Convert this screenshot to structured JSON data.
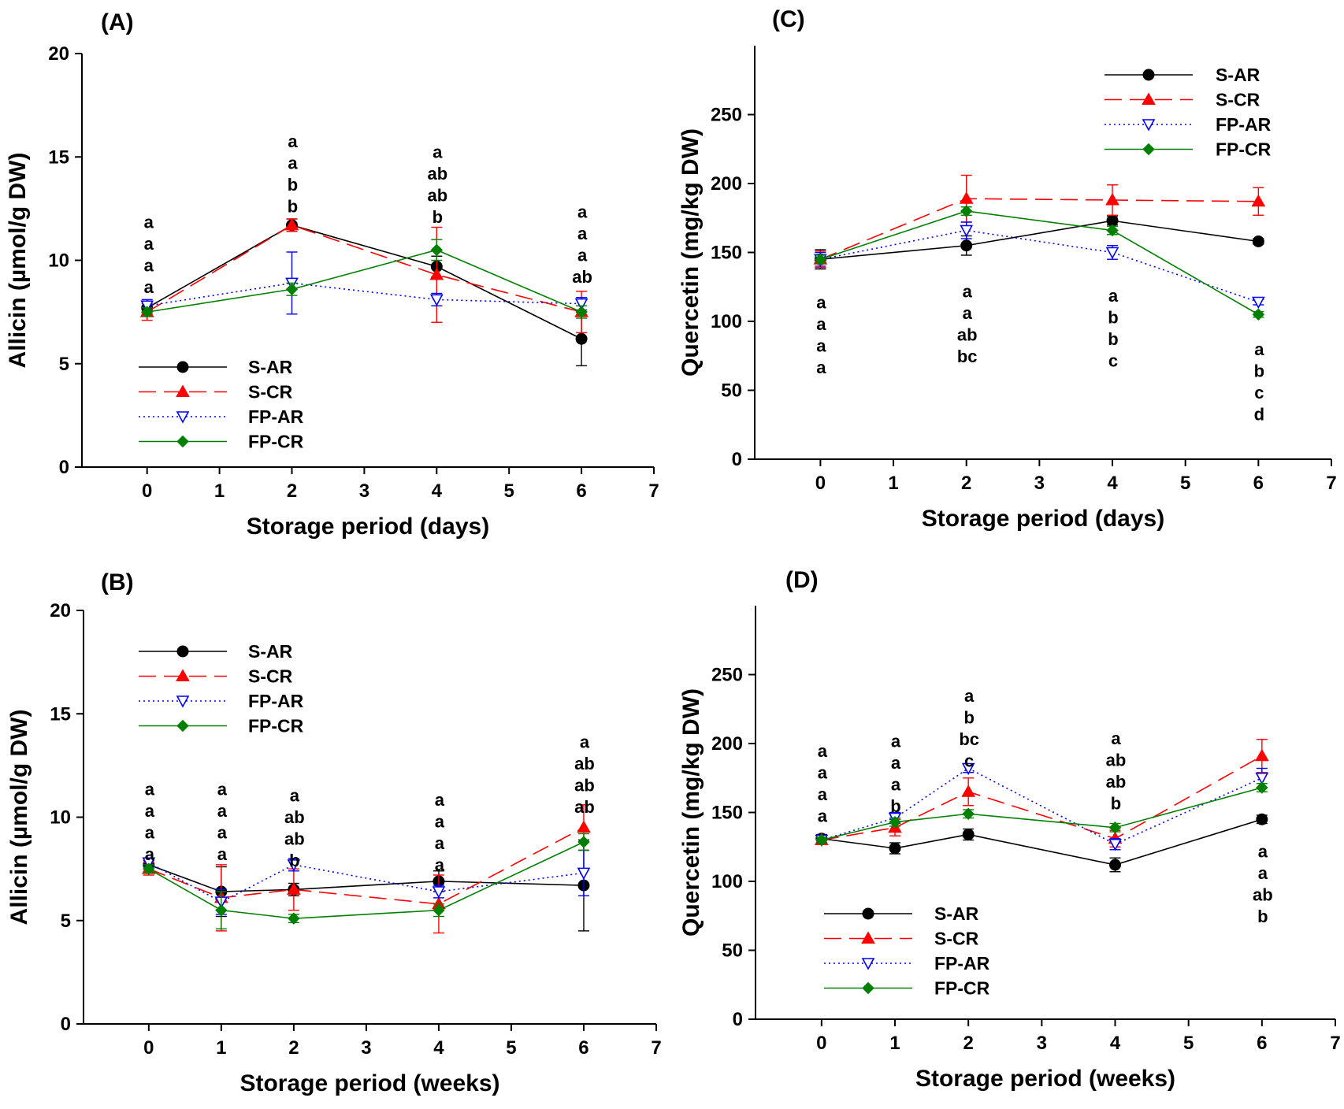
{
  "chart_data": [
    {
      "panel": "(A)",
      "type": "line",
      "xlabel": "Storage period (days)",
      "ylabel": "Allicin (µmol/g DW)",
      "xlim": [
        -0.9,
        7
      ],
      "ylim": [
        0,
        20
      ],
      "xticks": [
        0,
        1,
        2,
        3,
        4,
        5,
        6,
        7
      ],
      "yticks": [
        0,
        5,
        10,
        15,
        20
      ],
      "legend_position": "bottom-left",
      "x": [
        0,
        2,
        4,
        6
      ],
      "series": [
        {
          "name": "S-AR",
          "color": "#000000",
          "values": [
            7.7,
            11.7,
            9.7,
            6.2
          ],
          "errors": [
            0.3,
            0.3,
            0.5,
            1.3
          ]
        },
        {
          "name": "S-CR",
          "color": "#ff0000",
          "values": [
            7.5,
            11.7,
            9.3,
            7.5
          ],
          "errors": [
            0.4,
            0.3,
            2.3,
            1.0
          ]
        },
        {
          "name": "FP-AR",
          "color": "#0000ff",
          "values": [
            7.8,
            8.9,
            8.1,
            7.9
          ],
          "errors": [
            0.3,
            1.5,
            0.3,
            0.3
          ]
        },
        {
          "name": "FP-CR",
          "color": "#008000",
          "values": [
            7.5,
            8.6,
            10.5,
            7.5
          ],
          "errors": [
            0.2,
            0.3,
            0.5,
            0.3
          ]
        }
      ],
      "significance_letters": [
        {
          "x": 0,
          "letters": [
            "a",
            "a",
            "a",
            "a"
          ]
        },
        {
          "x": 2,
          "letters": [
            "a",
            "a",
            "b",
            "b"
          ]
        },
        {
          "x": 4,
          "letters": [
            "a",
            "ab",
            "ab",
            "b"
          ]
        },
        {
          "x": 6,
          "letters": [
            "a",
            "a",
            "a",
            "ab"
          ]
        }
      ]
    },
    {
      "panel": "(B)",
      "type": "line",
      "xlabel": "Storage period (weeks)",
      "ylabel": "Allicin (µmol/g DW)",
      "xlim": [
        -0.9,
        7
      ],
      "ylim": [
        0,
        20
      ],
      "xticks": [
        0,
        1,
        2,
        3,
        4,
        5,
        6,
        7
      ],
      "yticks": [
        0,
        5,
        10,
        15,
        20
      ],
      "legend_position": "top-left",
      "x": [
        0,
        1,
        2,
        4,
        6
      ],
      "series": [
        {
          "name": "S-AR",
          "color": "#000000",
          "values": [
            7.7,
            6.4,
            6.5,
            6.9,
            6.7
          ],
          "errors": [
            0.2,
            1.2,
            0.3,
            0.5,
            2.2
          ]
        },
        {
          "name": "S-CR",
          "color": "#ff0000",
          "values": [
            7.5,
            6.1,
            6.5,
            5.8,
            9.5
          ],
          "errors": [
            0.3,
            1.6,
            1.0,
            1.4,
            1.1
          ]
        },
        {
          "name": "FP-AR",
          "color": "#0000ff",
          "values": [
            7.8,
            5.9,
            7.7,
            6.4,
            7.3
          ],
          "errors": [
            0.2,
            0.6,
            0.3,
            0.3,
            1.1
          ]
        },
        {
          "name": "FP-CR",
          "color": "#008000",
          "values": [
            7.5,
            5.5,
            5.1,
            5.5,
            8.8
          ],
          "errors": [
            0.2,
            0.9,
            0.2,
            0.3,
            0.4
          ]
        }
      ],
      "significance_letters": [
        {
          "x": 0,
          "letters": [
            "a",
            "a",
            "a",
            "a"
          ]
        },
        {
          "x": 1,
          "letters": [
            "a",
            "a",
            "a",
            "a"
          ]
        },
        {
          "x": 2,
          "letters": [
            "a",
            "ab",
            "ab",
            "b"
          ]
        },
        {
          "x": 4,
          "letters": [
            "a",
            "a",
            "a",
            "a"
          ]
        },
        {
          "x": 6,
          "letters": [
            "a",
            "ab",
            "ab",
            "ab"
          ]
        }
      ]
    },
    {
      "panel": "(C)",
      "type": "line",
      "xlabel": "Storage period (days)",
      "ylabel": "Quercetin (mg/kg DW)",
      "xlim": [
        -0.9,
        7
      ],
      "ylim": [
        0,
        300
      ],
      "xticks": [
        0,
        1,
        2,
        3,
        4,
        5,
        6,
        7
      ],
      "yticks": [
        0,
        50,
        100,
        150,
        200,
        250
      ],
      "legend_position": "top-right",
      "x": [
        0,
        2,
        4,
        6
      ],
      "series": [
        {
          "name": "S-AR",
          "color": "#000000",
          "values": [
            145,
            155,
            173,
            158
          ],
          "errors": [
            7,
            7,
            3,
            2
          ]
        },
        {
          "name": "S-CR",
          "color": "#ff0000",
          "values": [
            145,
            189,
            188,
            187
          ],
          "errors": [
            6,
            17,
            11,
            10
          ]
        },
        {
          "name": "FP-AR",
          "color": "#0000ff",
          "values": [
            145,
            166,
            150,
            114
          ],
          "errors": [
            5,
            6,
            5,
            2
          ]
        },
        {
          "name": "FP-CR",
          "color": "#008000",
          "values": [
            145,
            180,
            166,
            105
          ],
          "errors": [
            3,
            3,
            3,
            2
          ]
        }
      ],
      "significance_letters": [
        {
          "x": 0,
          "letters": [
            "a",
            "a",
            "a",
            "a"
          ]
        },
        {
          "x": 2,
          "letters": [
            "a",
            "a",
            "ab",
            "bc"
          ]
        },
        {
          "x": 4,
          "letters": [
            "a",
            "b",
            "b",
            "c"
          ]
        },
        {
          "x": 6,
          "letters": [
            "a",
            "b",
            "c",
            "d"
          ]
        }
      ]
    },
    {
      "panel": "(D)",
      "type": "line",
      "xlabel": "Storage period (weeks)",
      "ylabel": "Quercetin (mg/kg DW)",
      "xlim": [
        -0.9,
        7
      ],
      "ylim": [
        0,
        300
      ],
      "xticks": [
        0,
        1,
        2,
        3,
        4,
        5,
        6,
        7
      ],
      "yticks": [
        0,
        50,
        100,
        150,
        200,
        250
      ],
      "legend_position": "bottom-left",
      "x": [
        0,
        1,
        2,
        4,
        6
      ],
      "series": [
        {
          "name": "S-AR",
          "color": "#000000",
          "values": [
            131,
            124,
            134,
            112,
            145
          ],
          "errors": [
            3,
            4,
            4,
            5,
            3
          ]
        },
        {
          "name": "S-CR",
          "color": "#ff0000",
          "values": [
            130,
            139,
            165,
            131,
            191
          ],
          "errors": [
            3,
            6,
            10,
            6,
            12
          ]
        },
        {
          "name": "FP-AR",
          "color": "#0000ff",
          "values": [
            130,
            146,
            182,
            127,
            175
          ],
          "errors": [
            2,
            4,
            3,
            4,
            7
          ]
        },
        {
          "name": "FP-CR",
          "color": "#008000",
          "values": [
            130,
            143,
            149,
            139,
            168
          ],
          "errors": [
            2,
            3,
            3,
            3,
            3
          ]
        }
      ],
      "significance_letters": [
        {
          "x": 0,
          "letters": [
            "a",
            "a",
            "a",
            "a"
          ]
        },
        {
          "x": 1,
          "letters": [
            "a",
            "a",
            "a",
            "b"
          ]
        },
        {
          "x": 2,
          "letters": [
            "a",
            "b",
            "bc",
            "c"
          ]
        },
        {
          "x": 4,
          "letters": [
            "a",
            "ab",
            "ab",
            "b"
          ]
        },
        {
          "x": 6,
          "letters": [
            "a",
            "a",
            "ab",
            "b"
          ]
        }
      ]
    }
  ]
}
